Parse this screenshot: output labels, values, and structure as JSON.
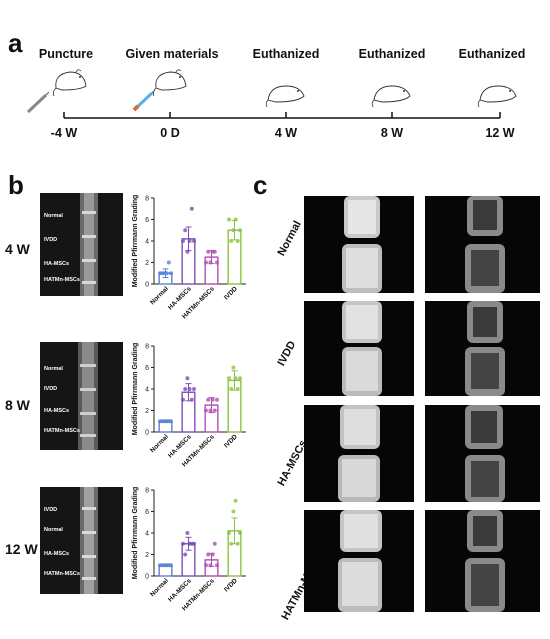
{
  "panels": {
    "a": "a",
    "b": "b",
    "c": "c"
  },
  "timeline": {
    "stages": [
      {
        "label": "Puncture",
        "time": "-4 W"
      },
      {
        "label": "Given materials",
        "time": "0 D"
      },
      {
        "label": "Euthanized",
        "time": "4 W"
      },
      {
        "label": "Euthanized",
        "time": "8 W"
      },
      {
        "label": "Euthanized",
        "time": "12 W"
      }
    ]
  },
  "panel_b": {
    "rows": [
      {
        "week": "4 W",
        "mri_labels": [
          "Normal",
          "IVDD",
          "HA-MSCs",
          "HATMn-MSCs"
        ]
      },
      {
        "week": "8 W",
        "mri_labels": [
          "Normal",
          "IVDD",
          "HA-MSCs",
          "HATMn-MSCs"
        ]
      },
      {
        "week": "12 W",
        "mri_labels": [
          "IVDD",
          "Normal",
          "HA-MSCs",
          "HATMn-MSCs"
        ]
      }
    ]
  },
  "chart_data": [
    {
      "type": "bar",
      "ylabel": "Modified Pfirrmann Grading",
      "ylim": [
        0,
        8
      ],
      "yticks": [
        0,
        2,
        4,
        6,
        8
      ],
      "categories": [
        "Normal",
        "HA-MSCs",
        "HATMn-MSCs",
        "IVDD"
      ],
      "values": [
        1.0,
        4.2,
        2.5,
        5.0
      ],
      "errors": [
        0.4,
        1.1,
        0.6,
        0.9
      ],
      "points": [
        [
          1,
          1,
          1,
          1,
          2,
          1
        ],
        [
          4,
          5,
          3,
          4,
          7,
          4
        ],
        [
          2,
          3,
          2,
          3,
          3,
          2
        ],
        [
          6,
          4,
          5,
          6,
          4,
          5
        ]
      ],
      "colors": [
        "#5b7fd6",
        "#7b4db8",
        "#b24db3",
        "#8ac43f"
      ]
    },
    {
      "type": "bar",
      "ylabel": "Modified Pfirrmann Grading",
      "ylim": [
        0,
        8
      ],
      "yticks": [
        0,
        2,
        4,
        6,
        8
      ],
      "categories": [
        "Normal",
        "HA-MSCs",
        "HATMn-MSCs",
        "IVDD"
      ],
      "values": [
        1.0,
        3.7,
        2.5,
        4.8
      ],
      "errors": [
        0.1,
        0.8,
        0.7,
        0.9
      ],
      "points": [
        [
          1,
          1,
          1,
          1,
          1,
          1
        ],
        [
          3,
          4,
          5,
          4,
          3,
          4
        ],
        [
          2,
          3,
          2,
          3,
          2,
          3
        ],
        [
          5,
          4,
          6,
          5,
          4,
          5
        ]
      ],
      "colors": [
        "#5b7fd6",
        "#7b4db8",
        "#b24db3",
        "#8ac43f"
      ]
    },
    {
      "type": "bar",
      "ylabel": "Modified Pfirrmann Grading",
      "ylim": [
        0,
        8
      ],
      "yticks": [
        0,
        2,
        4,
        6,
        8
      ],
      "categories": [
        "Normal",
        "HA-MSCs",
        "HATMn-MSCs",
        "IVDD"
      ],
      "values": [
        1.0,
        3.0,
        1.5,
        4.2
      ],
      "errors": [
        0.1,
        0.6,
        0.6,
        1.2
      ],
      "points": [
        [
          1,
          1,
          1,
          1,
          1,
          1
        ],
        [
          3,
          2,
          4,
          3,
          3,
          3
        ],
        [
          1,
          2,
          1,
          2,
          3,
          1
        ],
        [
          4,
          3,
          6,
          7,
          3,
          4
        ]
      ],
      "colors": [
        "#5b7fd6",
        "#7b4db8",
        "#b24db3",
        "#8ac43f"
      ]
    }
  ],
  "panel_c": {
    "groups": [
      "Normal",
      "IVDD",
      "HA-MSCs",
      "HATMn-MSCs"
    ]
  }
}
